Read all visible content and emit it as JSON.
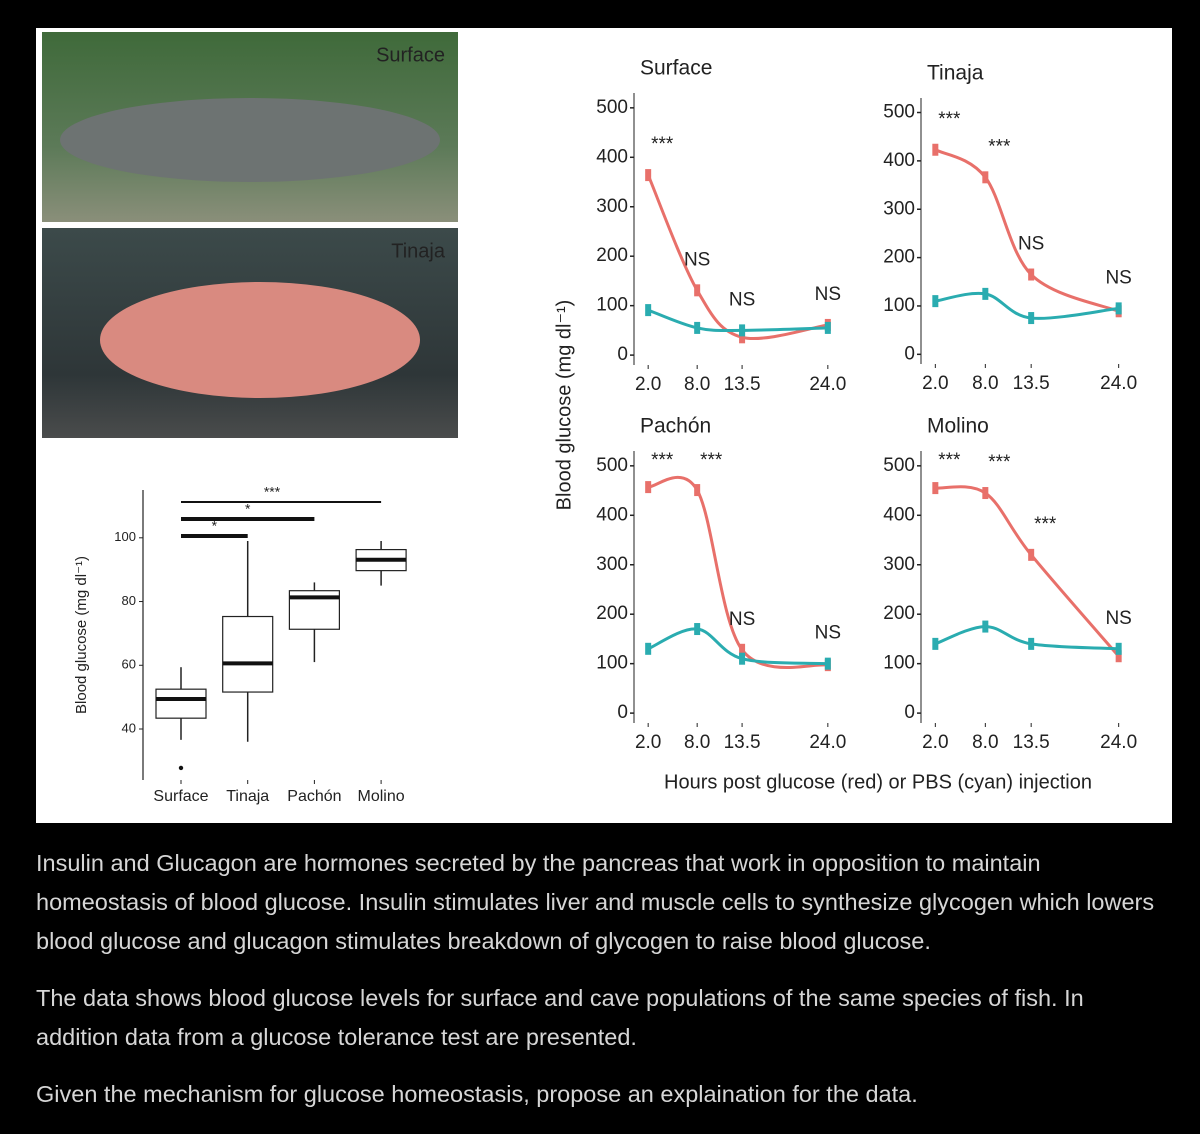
{
  "figure": {
    "photo_labels": [
      "Surface",
      "Tinaja"
    ],
    "y_label": "Blood glucose (mg dl⁻¹)",
    "x_label": "Hours post glucose (red) or PBS (cyan) injection"
  },
  "chart_data": [
    {
      "type": "box",
      "y_label": "Blood glucose (mg dl⁻¹)",
      "categories": [
        "Surface",
        "Tinaja",
        "Pachón",
        "Molino"
      ],
      "ylim": [
        24,
        115
      ],
      "yticks": [
        40,
        60,
        80,
        100
      ],
      "annotations": [
        "*",
        "*",
        "***"
      ],
      "boxes": [
        {
          "whisker_low": 36.6,
          "q1": 43.4,
          "median": 49.4,
          "q3": 52.5,
          "whisker_high": 59.4,
          "outliers": [
            27.8
          ]
        },
        {
          "whisker_low": 36,
          "q1": 51.6,
          "median": 60.6,
          "q3": 75.3,
          "whisker_high": 99,
          "outliers": []
        },
        {
          "whisker_low": 61,
          "q1": 71.3,
          "median": 81.3,
          "q3": 83.4,
          "whisker_high": 86,
          "outliers": []
        },
        {
          "whisker_low": 85,
          "q1": 89.7,
          "median": 93.1,
          "q3": 96.3,
          "whisker_high": 99,
          "outliers": []
        }
      ]
    },
    {
      "type": "line",
      "title": "Surface",
      "x": [
        2,
        8,
        13.5,
        24
      ],
      "xlim": [
        1,
        25
      ],
      "ylim": [
        -20,
        530
      ],
      "xticks": [
        {
          "value": 2,
          "label": "2.0"
        },
        {
          "value": 8,
          "label": "8.0"
        },
        13.5,
        {
          "value": 24,
          "label": "24.0"
        }
      ],
      "yticks": [
        0,
        100,
        200,
        300,
        400,
        500
      ],
      "annotations": [
        "***",
        "NS",
        "NS",
        "NS"
      ],
      "series": [
        {
          "color": "#e8706a",
          "values": [
            364,
            131,
            36,
            61
          ]
        },
        {
          "color": "#2aacb0",
          "values": [
            91,
            55,
            50,
            55
          ]
        }
      ]
    },
    {
      "type": "line",
      "title": "Tinaja",
      "x": [
        2,
        8,
        13.5,
        24
      ],
      "xlim": [
        1,
        25
      ],
      "ylim": [
        -20,
        530
      ],
      "xticks": [
        {
          "value": 2,
          "label": "2.0"
        },
        {
          "value": 8,
          "label": "8.0"
        },
        13.5,
        {
          "value": 24,
          "label": "24.0"
        }
      ],
      "yticks": [
        0,
        100,
        200,
        300,
        400,
        500
      ],
      "annotations": [
        "***",
        "***",
        "NS",
        "NS"
      ],
      "series": [
        {
          "color": "#e8706a",
          "values": [
            423,
            366,
            165,
            89
          ]
        },
        {
          "color": "#2aacb0",
          "values": [
            110,
            125,
            75,
            95
          ]
        }
      ]
    },
    {
      "type": "line",
      "title": "Pachón",
      "x": [
        2,
        8,
        13.5,
        24
      ],
      "xlim": [
        1,
        25
      ],
      "ylim": [
        -20,
        530
      ],
      "xticks": [
        {
          "value": 2,
          "label": "2.0"
        },
        {
          "value": 8,
          "label": "8.0"
        },
        13.5,
        {
          "value": 24,
          "label": "24.0"
        }
      ],
      "yticks": [
        0,
        100,
        200,
        300,
        400,
        500
      ],
      "annotations": [
        "***",
        "***",
        "NS",
        "NS"
      ],
      "series": [
        {
          "color": "#e8706a",
          "values": [
            457,
            451,
            128,
            97
          ]
        },
        {
          "color": "#2aacb0",
          "values": [
            130,
            170,
            110,
            100
          ]
        }
      ]
    },
    {
      "type": "line",
      "title": "Molino",
      "x": [
        2,
        8,
        13.5,
        24
      ],
      "xlim": [
        1,
        25
      ],
      "ylim": [
        -20,
        530
      ],
      "xticks": [
        {
          "value": 2,
          "label": "2.0"
        },
        {
          "value": 8,
          "label": "8.0"
        },
        13.5,
        {
          "value": 24,
          "label": "24.0"
        }
      ],
      "yticks": [
        0,
        100,
        200,
        300,
        400,
        500
      ],
      "annotations": [
        "***",
        "***",
        "***",
        "NS"
      ],
      "series": [
        {
          "color": "#e8706a",
          "values": [
            455,
            445,
            320,
            115
          ]
        },
        {
          "color": "#2aacb0",
          "values": [
            140,
            175,
            140,
            130
          ]
        }
      ]
    }
  ],
  "paragraphs": [
    "Insulin and Glucagon are hormones secreted by the pancreas that work in opposition to maintain homeostasis of blood glucose. Insulin stimulates liver and muscle cells to synthesize glycogen which lowers blood glucose and glucagon stimulates breakdown of glycogen to raise blood glucose.",
    "The data shows blood glucose levels for surface and cave populations of the same species of fish. In addition data from a glucose tolerance test are presented.",
    "Given the mechanism for glucose homeostasis, propose an explaination for the data."
  ]
}
